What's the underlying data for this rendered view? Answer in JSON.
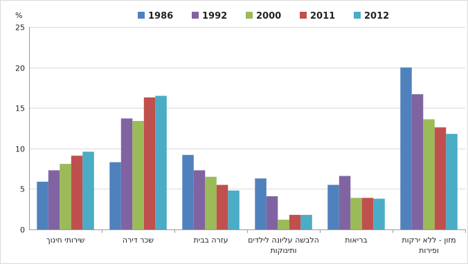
{
  "chart_data": {
    "type": "bar",
    "y_unit_label": "%",
    "ylim": [
      0,
      25
    ],
    "yticks": [
      0,
      5,
      10,
      15,
      20,
      25
    ],
    "grid": true,
    "legend_position": "top",
    "categories": [
      [
        "שירותי חינוך"
      ],
      [
        "שכר דירה"
      ],
      [
        "עזרה בבית"
      ],
      [
        "הלבשה עליונה לילדים",
        "ותינוקות"
      ],
      [
        "בריאות"
      ],
      [
        "מזון - ללא ירקות",
        "ופירות"
      ]
    ],
    "series": [
      {
        "name": "1986",
        "color": "#4F81BD",
        "values": [
          5.9,
          8.3,
          9.2,
          6.3,
          5.5,
          20.0
        ]
      },
      {
        "name": "1992",
        "color": "#8064A2",
        "values": [
          7.3,
          13.7,
          7.3,
          4.1,
          6.6,
          16.7
        ]
      },
      {
        "name": "2000",
        "color": "#9BBB59",
        "values": [
          8.1,
          13.4,
          6.5,
          1.2,
          3.9,
          13.6
        ]
      },
      {
        "name": "2011",
        "color": "#C0504D",
        "values": [
          9.1,
          16.3,
          5.5,
          1.8,
          3.9,
          12.6
        ]
      },
      {
        "name": "2012",
        "color": "#4BACC6",
        "values": [
          9.6,
          16.5,
          4.8,
          1.8,
          3.8,
          11.8
        ]
      }
    ]
  }
}
